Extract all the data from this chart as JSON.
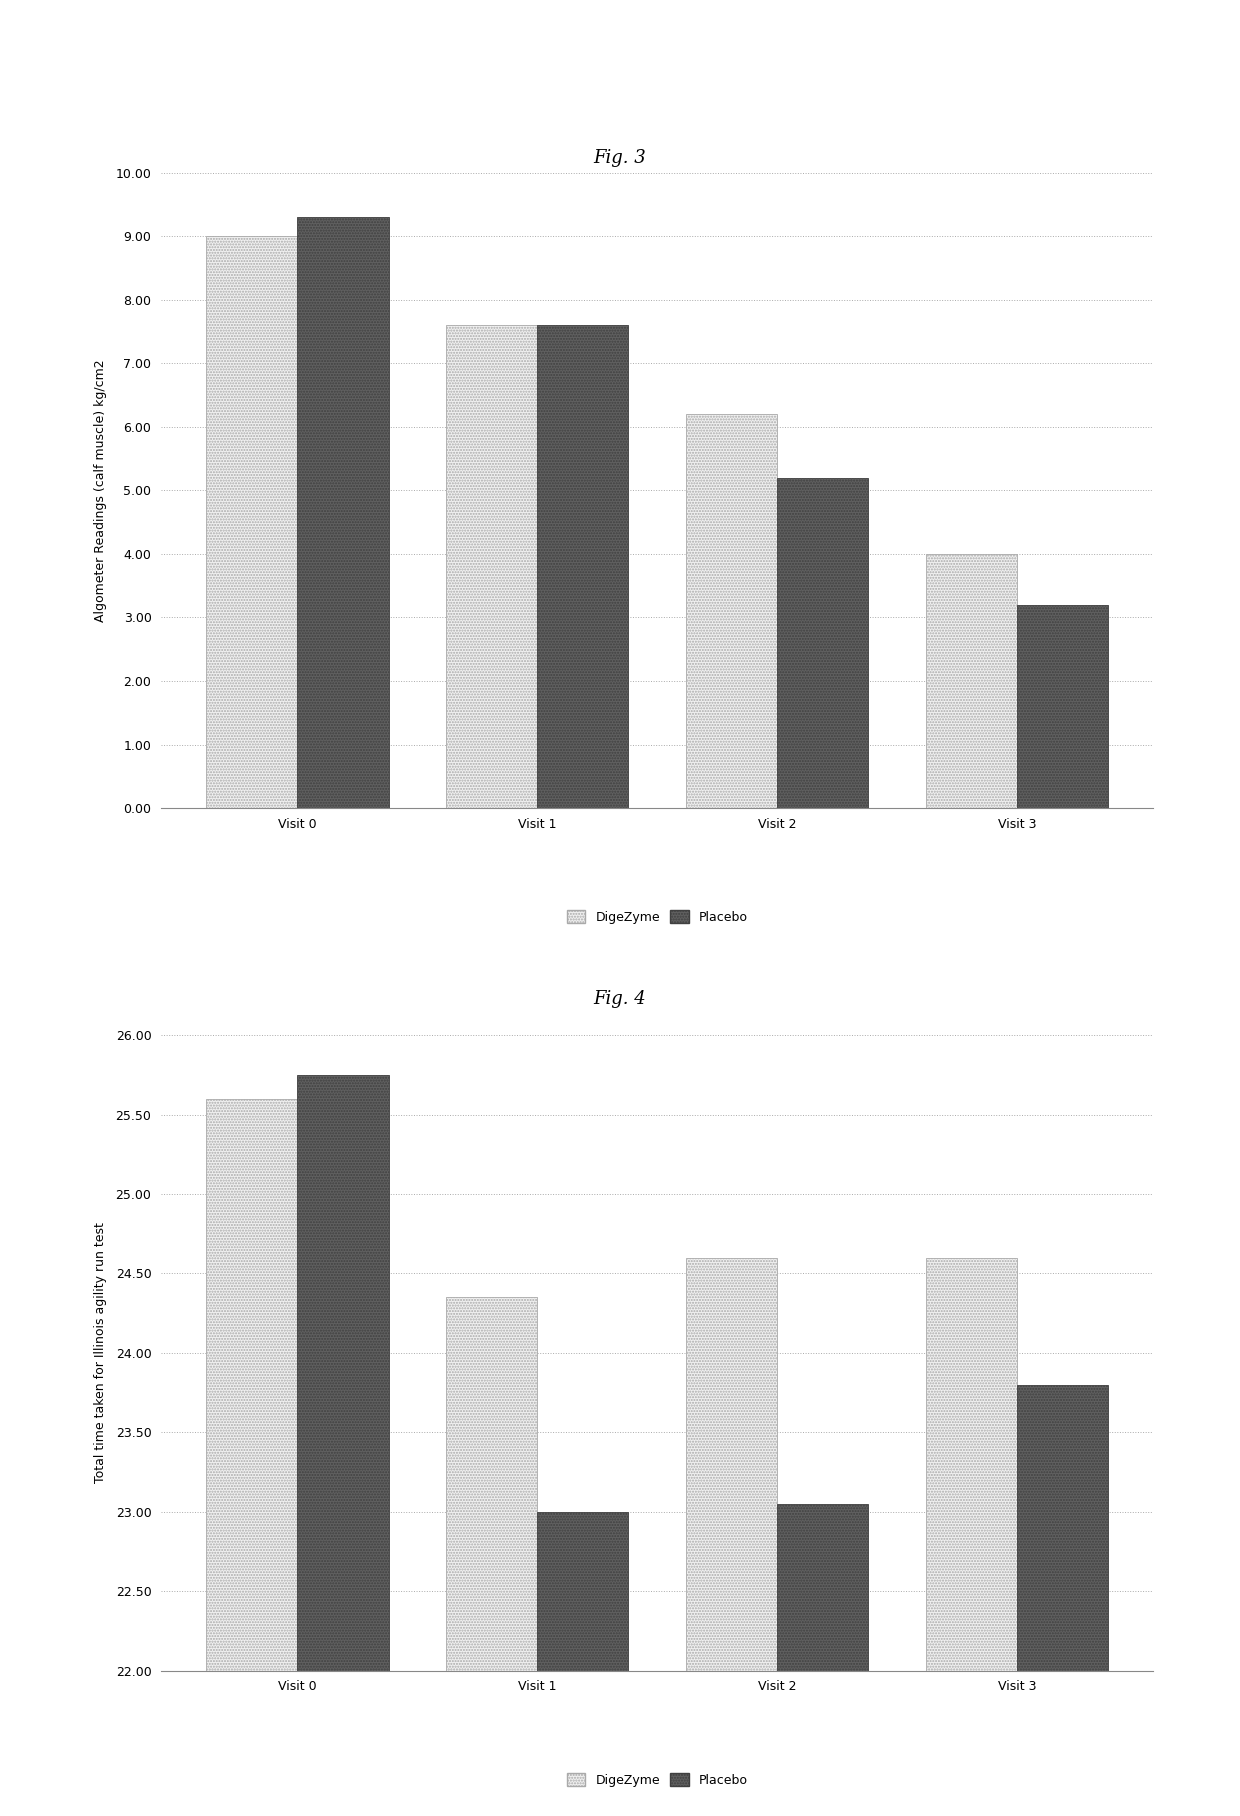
{
  "fig3": {
    "title": "Fig. 3",
    "categories": [
      "Visit 0",
      "Visit 1",
      "Visit 2",
      "Visit 3"
    ],
    "digezyme": [
      9.0,
      7.6,
      6.2,
      4.0
    ],
    "placebo": [
      9.3,
      7.6,
      5.2,
      3.2
    ],
    "ylabel": "Algometer Readings (calf muscle) kg/cm2",
    "ylim": [
      0.0,
      10.0
    ],
    "yticks": [
      0.0,
      1.0,
      2.0,
      3.0,
      4.0,
      5.0,
      6.0,
      7.0,
      8.0,
      9.0,
      10.0
    ],
    "ytick_labels": [
      "0.00",
      "1.00",
      "2.00",
      "3.00",
      "4.00",
      "5.00",
      "6.00",
      "7.00",
      "8.00",
      "9.00",
      "10.00"
    ]
  },
  "fig4": {
    "title": "Fig. 4",
    "categories": [
      "Visit 0",
      "Visit 1",
      "Visit 2",
      "Visit 3"
    ],
    "digezyme": [
      25.6,
      24.35,
      24.6,
      24.6
    ],
    "placebo": [
      25.75,
      23.0,
      23.05,
      23.8
    ],
    "ylabel": "Total time taken for Illinois agility run test",
    "ylim": [
      22.0,
      26.0
    ],
    "yticks": [
      22.0,
      22.5,
      23.0,
      23.5,
      24.0,
      24.5,
      25.0,
      25.5,
      26.0
    ],
    "ytick_labels": [
      "22.00",
      "22.50",
      "23.00",
      "23.50",
      "24.00",
      "24.50",
      "25.00",
      "25.50",
      "26.00"
    ]
  },
  "digezyme_facecolor": "#f0f0f0",
  "digezyme_edgecolor": "#aaaaaa",
  "placebo_facecolor": "#606060",
  "placebo_edgecolor": "#404040",
  "background_color": "#ffffff",
  "plot_bg_color": "#ffffff",
  "bar_width": 0.38,
  "legend_digezyme": "DigeZyme",
  "legend_placebo": "Placebo",
  "title_fontsize": 13,
  "axis_label_fontsize": 9,
  "tick_fontsize": 9,
  "legend_fontsize": 9,
  "xtick_fontsize": 9
}
